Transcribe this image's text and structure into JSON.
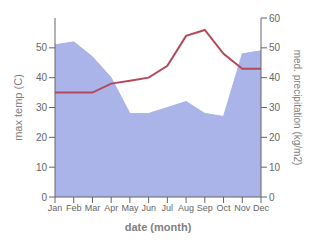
{
  "chart_data": {
    "type": "line",
    "xlabel": "date (month)",
    "ylabel": "max temp (C)",
    "y2label": "med. precipitation (kg/m2)",
    "categories": [
      "Jan",
      "Feb",
      "Mar",
      "Apr",
      "May",
      "Jun",
      "Jul",
      "Aug",
      "Sep",
      "Oct",
      "Nov",
      "Dec"
    ],
    "ylim": [
      0,
      60
    ],
    "yticks": [
      0,
      10,
      20,
      30,
      40,
      50
    ],
    "y2lim": [
      0,
      60
    ],
    "y2ticks": [
      0,
      10,
      20,
      30,
      40,
      50,
      60
    ],
    "grid": false,
    "series": [
      {
        "type": "area",
        "axis": "y2",
        "color": "#aab4e8",
        "values": [
          51,
          52,
          47,
          40,
          28,
          28,
          30,
          32,
          28,
          27,
          48,
          49
        ]
      },
      {
        "type": "line",
        "axis": "y",
        "color": "#b5495b",
        "values": [
          35,
          35,
          35,
          38,
          39,
          40,
          44,
          54,
          56,
          48,
          43,
          43
        ]
      }
    ]
  }
}
